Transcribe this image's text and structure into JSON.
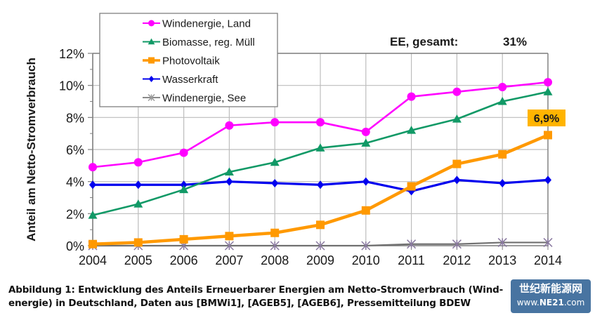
{
  "chart_data": {
    "type": "line",
    "title": "",
    "xlabel": "",
    "ylabel": "Anteil am Netto-Stromverbrauch",
    "ylim": [
      0,
      12
    ],
    "yticks": [
      0,
      2,
      4,
      6,
      8,
      10,
      12
    ],
    "ytick_labels": [
      "0%",
      "2%",
      "4%",
      "6%",
      "8%",
      "10%",
      "12%"
    ],
    "x": [
      2004,
      2005,
      2006,
      2007,
      2008,
      2009,
      2010,
      2011,
      2012,
      2013,
      2014
    ],
    "xtick_labels": [
      "2004",
      "2005",
      "2006",
      "2007",
      "2008",
      "2009",
      "2010",
      "2011",
      "2012",
      "2013",
      "2014"
    ],
    "grid": true,
    "legend_position": "top-left",
    "series": [
      {
        "name": "Windenergie, Land",
        "color": "#ff00ff",
        "marker": "circle",
        "values": [
          4.9,
          5.2,
          5.8,
          7.5,
          7.7,
          7.7,
          7.1,
          9.3,
          9.6,
          9.9,
          10.2
        ]
      },
      {
        "name": "Biomasse, reg. Müll",
        "color": "#119966",
        "marker": "triangle",
        "values": [
          1.9,
          2.6,
          3.5,
          4.6,
          5.2,
          6.1,
          6.4,
          7.2,
          7.9,
          9.0,
          9.6
        ]
      },
      {
        "name": "Photovoltaik",
        "color": "#ff9900",
        "marker": "square",
        "values": [
          0.1,
          0.2,
          0.4,
          0.6,
          0.8,
          1.3,
          2.2,
          3.7,
          5.1,
          5.7,
          6.9
        ]
      },
      {
        "name": "Wasserkraft",
        "color": "#0000ee",
        "marker": "diamond",
        "values": [
          3.8,
          3.8,
          3.8,
          4.0,
          3.9,
          3.8,
          4.0,
          3.4,
          4.1,
          3.9,
          4.1
        ]
      },
      {
        "name": "Windenergie, See",
        "color": "#8a7aa0",
        "marker": "asterisk",
        "values": [
          0.0,
          0.0,
          0.0,
          0.0,
          0.0,
          0.0,
          0.0,
          0.1,
          0.1,
          0.2,
          0.2
        ]
      }
    ],
    "annotations": [
      {
        "text": "EE, gesamt:",
        "value_text": "31%"
      },
      {
        "text": "6,9%",
        "series": "Photovoltaik",
        "x": 2014,
        "background": "#ffb400"
      }
    ]
  },
  "caption": {
    "line1": "Abbildung 1: Entwicklung des Anteils Erneuerbarer Energien am Netto-Stromverbrauch (Wind-",
    "line2": "energie) in Deutschland, Daten aus [BMWi1], [AGEB5], [AGEB6], Pressemitteilung BDEW"
  },
  "watermark": {
    "top": "世纪新能源网",
    "bottom_prefix": "www.",
    "bottom_brand": "NE21",
    "bottom_suffix": ".com"
  }
}
